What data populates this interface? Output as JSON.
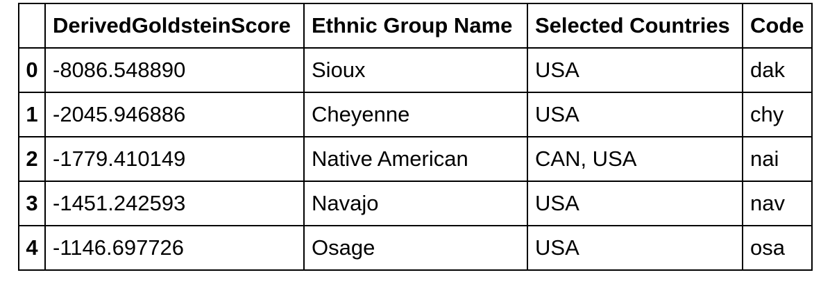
{
  "table": {
    "columns": [
      "",
      "DerivedGoldsteinScore",
      "Ethnic Group Name",
      "Selected Countries",
      "Code"
    ],
    "rows": [
      {
        "index": "0",
        "score": "-8086.548890",
        "ethnic": "Sioux",
        "countries": "USA",
        "code": "dak"
      },
      {
        "index": "1",
        "score": "-2045.946886",
        "ethnic": "Cheyenne",
        "countries": "USA",
        "code": "chy"
      },
      {
        "index": "2",
        "score": "-1779.410149",
        "ethnic": "Native American",
        "countries": "CAN, USA",
        "code": "nai"
      },
      {
        "index": "3",
        "score": "-1451.242593",
        "ethnic": "Navajo",
        "countries": "USA",
        "code": "nav"
      },
      {
        "index": "4",
        "score": "-1146.697726",
        "ethnic": "Osage",
        "countries": "USA",
        "code": "osa"
      }
    ]
  }
}
